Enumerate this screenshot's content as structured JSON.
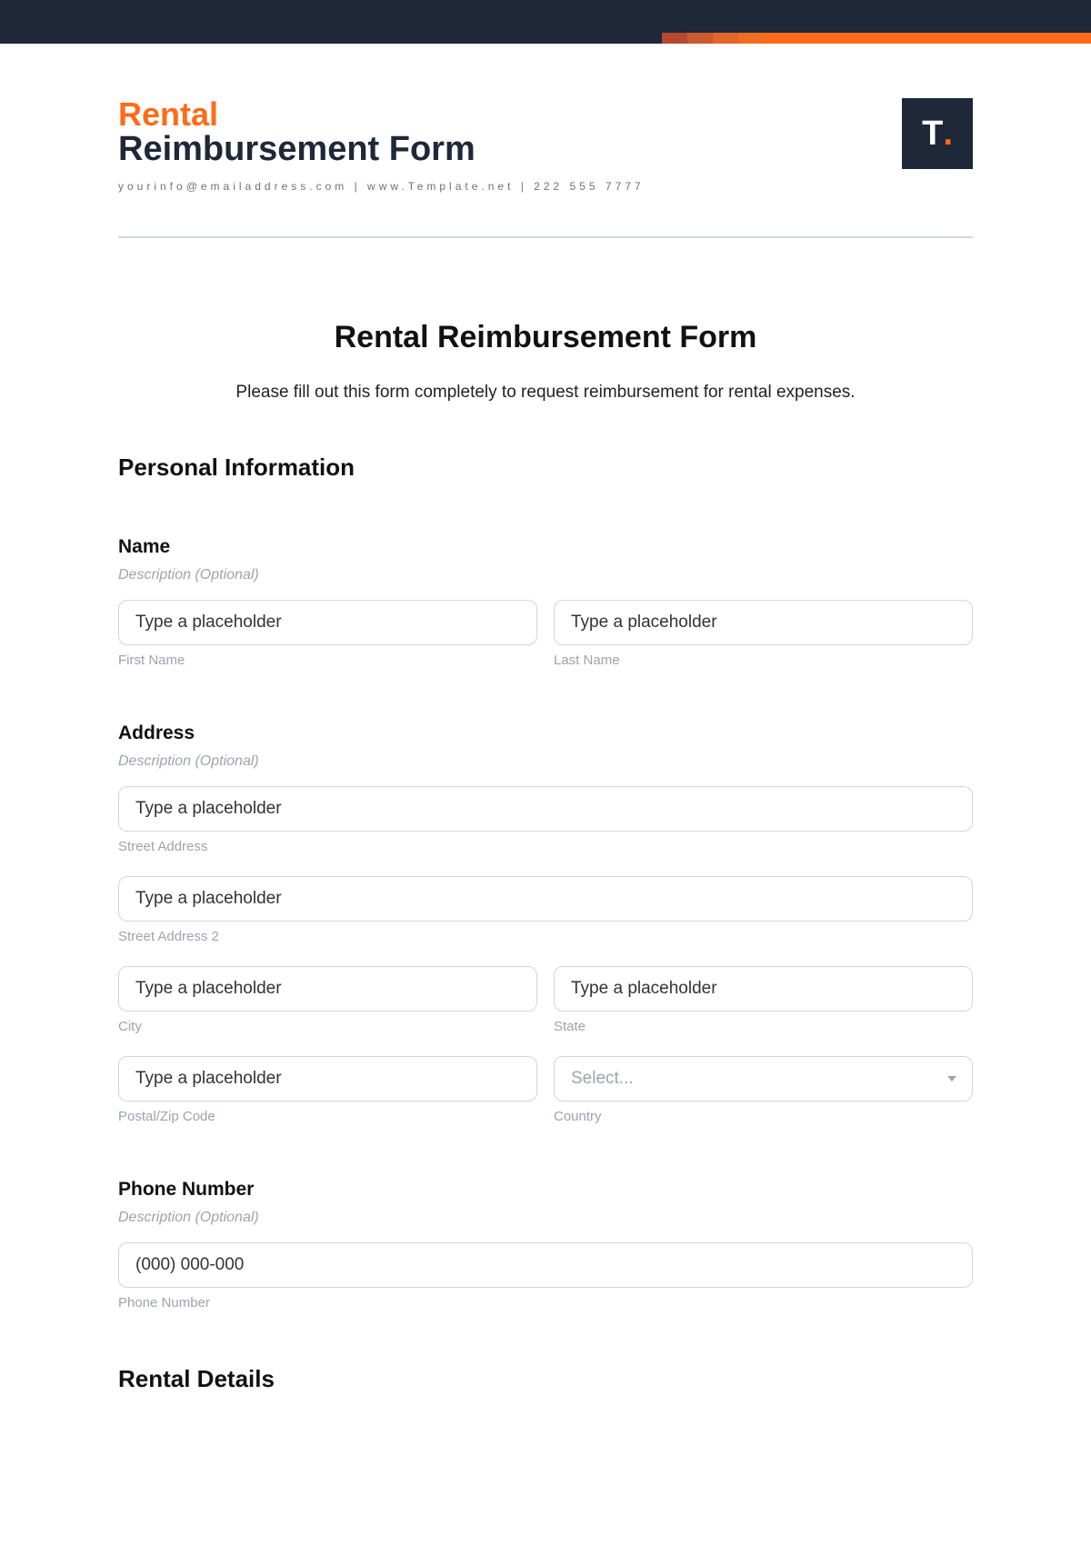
{
  "colors": {
    "dark": "#1e2838",
    "orange": "#ff6b1a",
    "accent_shades": [
      "#b5482f",
      "#cc5a2e",
      "#e3652a",
      "#f06e23",
      "#ff6b1a"
    ],
    "accent_bar_widths": [
      28,
      28,
      28,
      28,
      360
    ],
    "divider": "#d1d5db",
    "muted": "#9ca3af",
    "text": "#111111",
    "white": "#ffffff"
  },
  "header": {
    "brand_line1": "Rental",
    "brand_line2": "Reimbursement Form",
    "contact": "yourinfo@emailaddress.com | www.Template.net | 222 555 7777",
    "logo_letter": "T",
    "logo_dot": "."
  },
  "form": {
    "title": "Rental Reimbursement Form",
    "intro": "Please fill out this form completely to request reimbursement for rental expenses.",
    "section_personal": "Personal Information",
    "section_rental": "Rental Details",
    "name": {
      "label": "Name",
      "desc": "Description (Optional)",
      "first_placeholder": "Type a placeholder",
      "first_sub": "First Name",
      "last_placeholder": "Type a placeholder",
      "last_sub": "Last Name"
    },
    "address": {
      "label": "Address",
      "desc": "Description (Optional)",
      "street_placeholder": "Type a placeholder",
      "street_sub": "Street Address",
      "street2_placeholder": "Type a placeholder",
      "street2_sub": "Street Address 2",
      "city_placeholder": "Type a placeholder",
      "city_sub": "City",
      "state_placeholder": "Type a placeholder",
      "state_sub": "State",
      "postal_placeholder": "Type a placeholder",
      "postal_sub": "Postal/Zip Code",
      "country_placeholder": "Select...",
      "country_sub": "Country"
    },
    "phone": {
      "label": "Phone Number",
      "desc": "Description (Optional)",
      "placeholder": "(000) 000-000",
      "sub": "Phone Number"
    }
  }
}
